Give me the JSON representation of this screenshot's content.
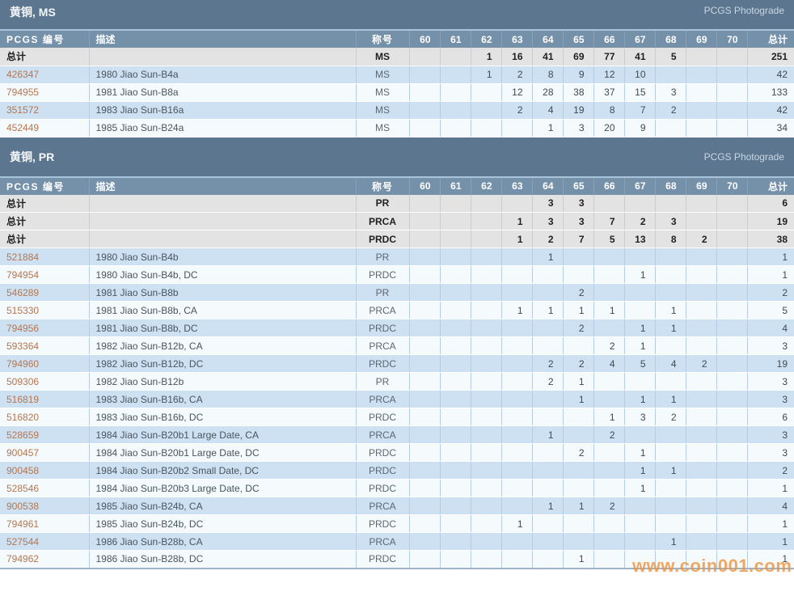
{
  "watermark": "www.coin001.com",
  "colors": {
    "title_bar": "#5d768f",
    "header_row": "#7591aa",
    "row_blue": "#cde1f2",
    "row_white": "#f5fafd",
    "totals_row": "#e3e3e3",
    "pcgs_number_link": "#b5764f",
    "photograde_link": "#c9d7e3",
    "watermark_color": "#f0913a"
  },
  "columns": {
    "number": "PCGS 编号",
    "desc": "描述",
    "grade": "称号",
    "grades": [
      "60",
      "61",
      "62",
      "63",
      "64",
      "65",
      "66",
      "67",
      "68",
      "69",
      "70"
    ],
    "total": "总计"
  },
  "sections": [
    {
      "title": "黄铜, MS",
      "link": "PCGS Photograde",
      "totals": [
        {
          "label": "总计",
          "desc": "",
          "grade": "MS",
          "values": [
            "",
            "",
            "1",
            "16",
            "41",
            "69",
            "77",
            "41",
            "5",
            "",
            ""
          ],
          "total": "251"
        }
      ],
      "rows": [
        {
          "number": "426347",
          "desc": "1980 Jiao Sun-B4a",
          "grade": "MS",
          "values": [
            "",
            "",
            "1",
            "2",
            "8",
            "9",
            "12",
            "10",
            "",
            "",
            ""
          ],
          "total": "42"
        },
        {
          "number": "794955",
          "desc": "1981 Jiao Sun-B8a",
          "grade": "MS",
          "values": [
            "",
            "",
            "",
            "12",
            "28",
            "38",
            "37",
            "15",
            "3",
            "",
            ""
          ],
          "total": "133"
        },
        {
          "number": "351572",
          "desc": "1983 Jiao Sun-B16a",
          "grade": "MS",
          "values": [
            "",
            "",
            "",
            "2",
            "4",
            "19",
            "8",
            "7",
            "2",
            "",
            ""
          ],
          "total": "42"
        },
        {
          "number": "452449",
          "desc": "1985 Jiao Sun-B24a",
          "grade": "MS",
          "values": [
            "",
            "",
            "",
            "",
            "1",
            "3",
            "20",
            "9",
            "",
            "",
            ""
          ],
          "total": "34"
        }
      ]
    },
    {
      "title": "黄铜, PR",
      "link": "PCGS Photograde",
      "totals": [
        {
          "label": "总计",
          "desc": "",
          "grade": "PR",
          "values": [
            "",
            "",
            "",
            "",
            "3",
            "3",
            "",
            "",
            "",
            "",
            ""
          ],
          "total": "6"
        },
        {
          "label": "总计",
          "desc": "",
          "grade": "PRCA",
          "values": [
            "",
            "",
            "",
            "1",
            "3",
            "3",
            "7",
            "2",
            "3",
            "",
            ""
          ],
          "total": "19"
        },
        {
          "label": "总计",
          "desc": "",
          "grade": "PRDC",
          "values": [
            "",
            "",
            "",
            "1",
            "2",
            "7",
            "5",
            "13",
            "8",
            "2",
            ""
          ],
          "total": "38"
        }
      ],
      "rows": [
        {
          "number": "521884",
          "desc": "1980 Jiao Sun-B4b",
          "grade": "PR",
          "values": [
            "",
            "",
            "",
            "",
            "1",
            "",
            "",
            "",
            "",
            "",
            ""
          ],
          "total": "1"
        },
        {
          "number": "794954",
          "desc": "1980 Jiao Sun-B4b, DC",
          "grade": "PRDC",
          "values": [
            "",
            "",
            "",
            "",
            "",
            "",
            "",
            "1",
            "",
            "",
            ""
          ],
          "total": "1"
        },
        {
          "number": "546289",
          "desc": "1981 Jiao Sun-B8b",
          "grade": "PR",
          "values": [
            "",
            "",
            "",
            "",
            "",
            "2",
            "",
            "",
            "",
            "",
            ""
          ],
          "total": "2"
        },
        {
          "number": "515330",
          "desc": "1981 Jiao Sun-B8b, CA",
          "grade": "PRCA",
          "values": [
            "",
            "",
            "",
            "1",
            "1",
            "1",
            "1",
            "",
            "1",
            "",
            ""
          ],
          "total": "5"
        },
        {
          "number": "794956",
          "desc": "1981 Jiao Sun-B8b, DC",
          "grade": "PRDC",
          "values": [
            "",
            "",
            "",
            "",
            "",
            "2",
            "",
            "1",
            "1",
            "",
            ""
          ],
          "total": "4"
        },
        {
          "number": "593364",
          "desc": "1982 Jiao Sun-B12b, CA",
          "grade": "PRCA",
          "values": [
            "",
            "",
            "",
            "",
            "",
            "",
            "2",
            "1",
            "",
            "",
            ""
          ],
          "total": "3"
        },
        {
          "number": "794960",
          "desc": "1982 Jiao Sun-B12b, DC",
          "grade": "PRDC",
          "values": [
            "",
            "",
            "",
            "",
            "2",
            "2",
            "4",
            "5",
            "4",
            "2",
            ""
          ],
          "total": "19"
        },
        {
          "number": "509306",
          "desc": "1982 Jiao Sun-B12b",
          "grade": "PR",
          "values": [
            "",
            "",
            "",
            "",
            "2",
            "1",
            "",
            "",
            "",
            "",
            ""
          ],
          "total": "3"
        },
        {
          "number": "516819",
          "desc": "1983 Jiao Sun-B16b, CA",
          "grade": "PRCA",
          "values": [
            "",
            "",
            "",
            "",
            "",
            "1",
            "",
            "1",
            "1",
            "",
            ""
          ],
          "total": "3"
        },
        {
          "number": "516820",
          "desc": "1983 Jiao Sun-B16b, DC",
          "grade": "PRDC",
          "values": [
            "",
            "",
            "",
            "",
            "",
            "",
            "1",
            "3",
            "2",
            "",
            ""
          ],
          "total": "6"
        },
        {
          "number": "528659",
          "desc": "1984 Jiao Sun-B20b1 Large Date, CA",
          "grade": "PRCA",
          "values": [
            "",
            "",
            "",
            "",
            "1",
            "",
            "2",
            "",
            "",
            "",
            ""
          ],
          "total": "3"
        },
        {
          "number": "900457",
          "desc": "1984 Jiao Sun-B20b1 Large Date, DC",
          "grade": "PRDC",
          "values": [
            "",
            "",
            "",
            "",
            "",
            "2",
            "",
            "1",
            "",
            "",
            ""
          ],
          "total": "3"
        },
        {
          "number": "900458",
          "desc": "1984 Jiao Sun-B20b2 Small Date, DC",
          "grade": "PRDC",
          "values": [
            "",
            "",
            "",
            "",
            "",
            "",
            "",
            "1",
            "1",
            "",
            ""
          ],
          "total": "2"
        },
        {
          "number": "528546",
          "desc": "1984 Jiao Sun-B20b3 Large Date, DC",
          "grade": "PRDC",
          "values": [
            "",
            "",
            "",
            "",
            "",
            "",
            "",
            "1",
            "",
            "",
            ""
          ],
          "total": "1"
        },
        {
          "number": "900538",
          "desc": "1985 Jiao Sun-B24b, CA",
          "grade": "PRCA",
          "values": [
            "",
            "",
            "",
            "",
            "1",
            "1",
            "2",
            "",
            "",
            "",
            ""
          ],
          "total": "4"
        },
        {
          "number": "794961",
          "desc": "1985 Jiao Sun-B24b, DC",
          "grade": "PRDC",
          "values": [
            "",
            "",
            "",
            "1",
            "",
            "",
            "",
            "",
            "",
            "",
            ""
          ],
          "total": "1"
        },
        {
          "number": "527544",
          "desc": "1986 Jiao Sun-B28b, CA",
          "grade": "PRCA",
          "values": [
            "",
            "",
            "",
            "",
            "",
            "",
            "",
            "",
            "1",
            "",
            ""
          ],
          "total": "1"
        },
        {
          "number": "794962",
          "desc": "1986 Jiao Sun-B28b, DC",
          "grade": "PRDC",
          "values": [
            "",
            "",
            "",
            "",
            "",
            "1",
            "",
            "",
            "",
            "",
            ""
          ],
          "total": "1"
        }
      ]
    }
  ]
}
